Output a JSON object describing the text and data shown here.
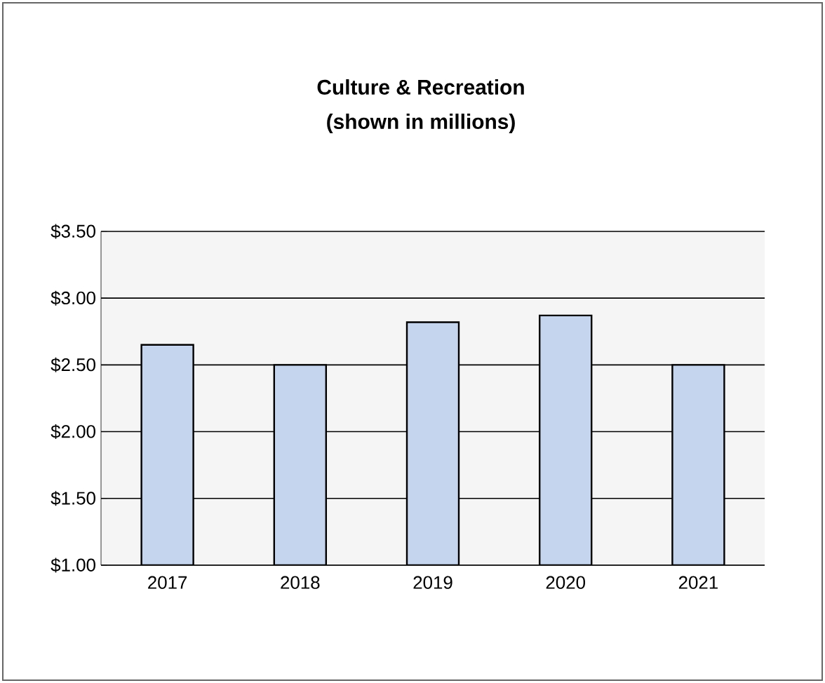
{
  "chart_data": {
    "type": "bar",
    "title": "Culture & Recreation",
    "subtitle": "(shown in millions)",
    "categories": [
      "2017",
      "2018",
      "2019",
      "2020",
      "2021"
    ],
    "values": [
      2.65,
      2.5,
      2.82,
      2.87,
      2.5
    ],
    "color": "#c5d5ee",
    "ylim": [
      1.0,
      3.5
    ],
    "yticks": [
      {
        "value": 1.0,
        "label": "$1.00"
      },
      {
        "value": 1.5,
        "label": "$1.50"
      },
      {
        "value": 2.0,
        "label": "$2.00"
      },
      {
        "value": 2.5,
        "label": "$2.50"
      },
      {
        "value": 3.0,
        "label": "$3.00"
      },
      {
        "value": 3.5,
        "label": "$3.50"
      }
    ],
    "grid": "y"
  }
}
